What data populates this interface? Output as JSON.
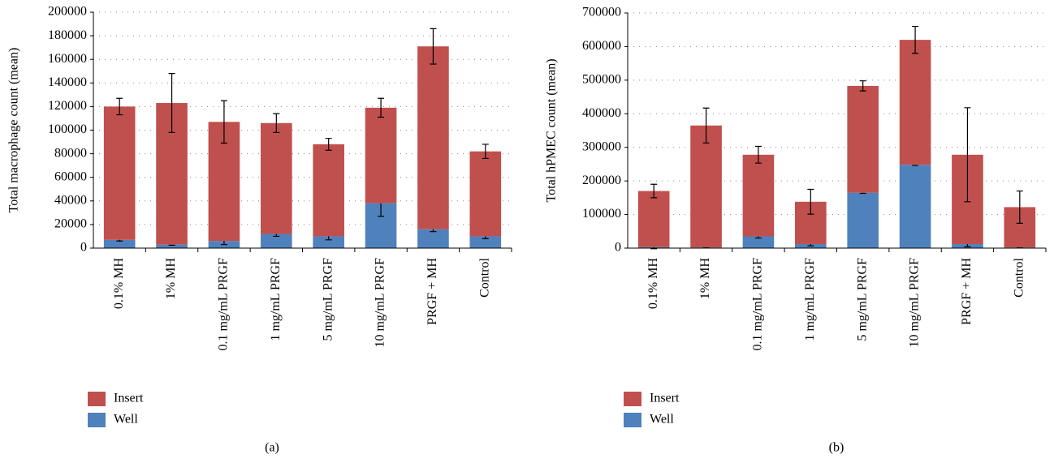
{
  "chart_data": [
    {
      "type": "bar",
      "stacked": true,
      "caption": "(a)",
      "ylabel": "Total macrophage count (mean)",
      "categories": [
        "0.1% MH",
        "1% MH",
        "0.1 mg/mL PRGF",
        "1 mg/mL PRGF",
        "5 mg/mL PRGF",
        "10 mg/mL PRGF",
        "PRGF + MH",
        "Control"
      ],
      "series": [
        {
          "name": "Well",
          "color": "#4f81bd",
          "values": [
            7000,
            3000,
            6000,
            12000,
            10000,
            38000,
            16000,
            10000
          ],
          "errors": [
            1000,
            500,
            3000,
            2000,
            3000,
            11000,
            2000,
            2000
          ]
        },
        {
          "name": "Insert",
          "color": "#c0504d",
          "values": [
            113000,
            120000,
            101000,
            94000,
            78000,
            81000,
            155000,
            72000
          ],
          "errors": [
            7000,
            25000,
            18000,
            8000,
            5000,
            8000,
            15000,
            6000
          ]
        }
      ],
      "ylim": [
        0,
        200000
      ],
      "yticks": [
        0,
        20000,
        40000,
        60000,
        80000,
        100000,
        120000,
        140000,
        160000,
        180000,
        200000
      ],
      "grid": true
    },
    {
      "type": "bar",
      "stacked": true,
      "caption": "(b)",
      "ylabel": "Total hPMEC count (mean)",
      "categories": [
        "0.1% MH",
        "1% MH",
        "0.1 mg/mL PRGF",
        "1 mg/mL PRGF",
        "5 mg/mL PRGF",
        "10 mg/mL PRGF",
        "PRGF + MH",
        "Control"
      ],
      "series": [
        {
          "name": "Well",
          "color": "#4f81bd",
          "values": [
            3000,
            2000,
            35000,
            12000,
            165000,
            248000,
            12000,
            2000
          ],
          "errors": [
            5000,
            1000,
            5000,
            5000,
            2000,
            2000,
            8000,
            1000
          ]
        },
        {
          "name": "Insert",
          "color": "#c0504d",
          "values": [
            167000,
            363000,
            243000,
            126000,
            318000,
            372000,
            266000,
            120000
          ],
          "errors": [
            20000,
            52000,
            25000,
            37000,
            15000,
            40000,
            140000,
            48000
          ]
        }
      ],
      "ylim": [
        0,
        700000
      ],
      "yticks": [
        0,
        100000,
        200000,
        300000,
        400000,
        500000,
        600000,
        700000
      ],
      "grid": true
    }
  ]
}
